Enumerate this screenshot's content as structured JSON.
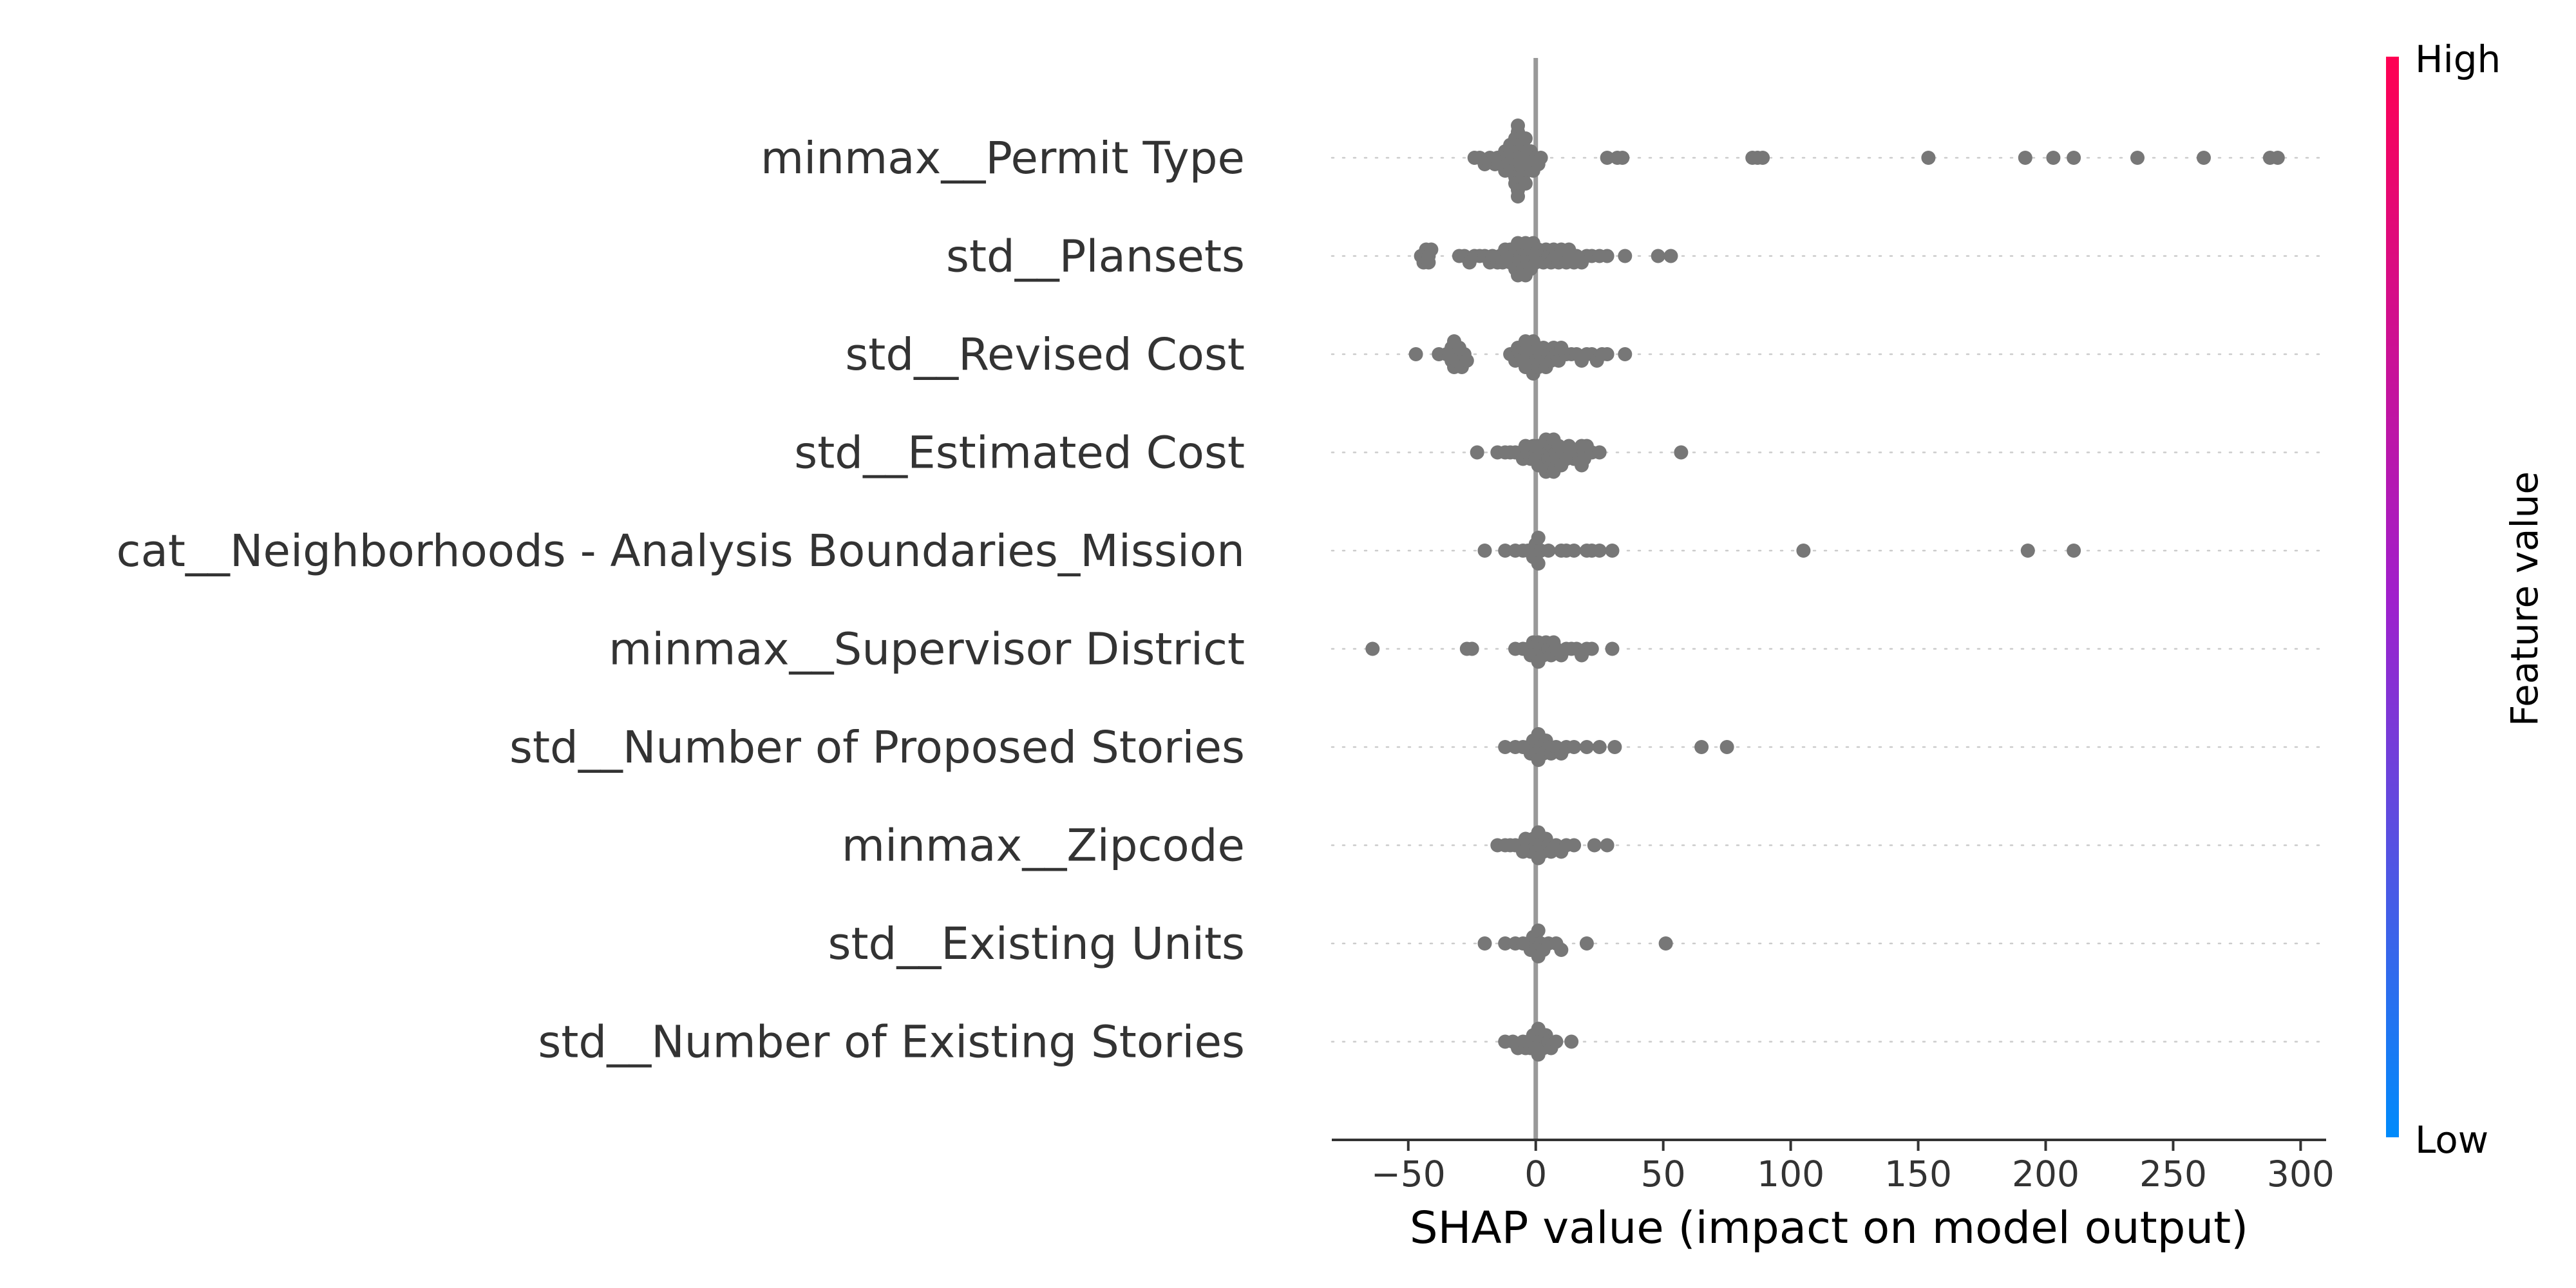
{
  "chart_data": {
    "type": "scatter",
    "subtype": "shap-beeswarm-summary",
    "title": "",
    "xlabel": "SHAP value (impact on model output)",
    "xlim": [
      -80,
      310
    ],
    "xticks": [
      -50,
      0,
      50,
      100,
      150,
      200,
      250,
      300
    ],
    "xtick_labels": [
      "−50",
      "0",
      "50",
      "100",
      "150",
      "200",
      "250",
      "300"
    ],
    "zero_line": true,
    "point_color": "#777777",
    "colorbar": {
      "label": "Feature value",
      "high_label": "High",
      "low_label": "Low",
      "high_color": "#ff0052",
      "mid_color": "#a01fcc",
      "low_color": "#008bfb"
    },
    "features": [
      {
        "name": "minmax__Permit Type",
        "values": [
          -15,
          -14,
          -13,
          -12,
          -12,
          -11,
          -11,
          -10,
          -10,
          -10,
          -9,
          -9,
          -9,
          -9,
          -8,
          -8,
          -8,
          -8,
          -7,
          -7,
          -7,
          -7,
          -6,
          -6,
          -6,
          -5,
          -5,
          -5,
          -4,
          -4,
          -3,
          -3,
          -2,
          -1,
          0,
          1,
          -16,
          -18,
          -20,
          -22,
          -24,
          2,
          28,
          32,
          34,
          85,
          87,
          89,
          154,
          192,
          203,
          211,
          236,
          262,
          288,
          291
        ]
      },
      {
        "name": "std__Plansets",
        "values": [
          -45,
          -44,
          -43,
          -42,
          -42,
          -41,
          -30,
          -28,
          -26,
          -24,
          -22,
          -20,
          -18,
          -17,
          -15,
          -14,
          -13,
          -12,
          -11,
          -10,
          -10,
          -9,
          -9,
          -8,
          -8,
          -7,
          -7,
          -6,
          -6,
          -5,
          -5,
          -4,
          -4,
          -3,
          -3,
          -2,
          -2,
          -1,
          0,
          0,
          1,
          2,
          3,
          4,
          5,
          6,
          7,
          8,
          9,
          10,
          11,
          12,
          13,
          14,
          15,
          16,
          18,
          20,
          22,
          25,
          28,
          35,
          48,
          53
        ]
      },
      {
        "name": "std__Revised Cost",
        "values": [
          -47,
          -38,
          -35,
          -34,
          -33,
          -33,
          -32,
          -32,
          -31,
          -31,
          -30,
          -29,
          -28,
          -27,
          -10,
          -9,
          -8,
          -7,
          -6,
          -5,
          -5,
          -4,
          -4,
          -3,
          -3,
          -2,
          -2,
          -1,
          -1,
          0,
          0,
          1,
          1,
          2,
          2,
          3,
          4,
          5,
          6,
          7,
          8,
          9,
          10,
          12,
          14,
          16,
          18,
          20,
          22,
          24,
          26,
          28,
          35
        ]
      },
      {
        "name": "std__Estimated Cost",
        "values": [
          -23,
          -15,
          -12,
          -10,
          -8,
          -6,
          -5,
          -4,
          -3,
          -2,
          -1,
          0,
          0,
          1,
          1,
          2,
          2,
          3,
          3,
          4,
          4,
          5,
          5,
          6,
          6,
          7,
          7,
          8,
          8,
          9,
          10,
          11,
          12,
          13,
          14,
          15,
          16,
          17,
          18,
          18,
          19,
          19,
          20,
          22,
          25,
          57
        ]
      },
      {
        "name": "cat__Neighborhoods - Analysis Boundaries_Mission",
        "values": [
          -20,
          -12,
          -8,
          -5,
          -3,
          -1,
          0,
          0,
          0,
          1,
          1,
          2,
          5,
          10,
          12,
          15,
          20,
          22,
          25,
          30,
          105,
          193,
          211
        ]
      },
      {
        "name": "minmax__Supervisor District",
        "values": [
          -64,
          -27,
          -25,
          -8,
          -5,
          -3,
          -2,
          -1,
          0,
          0,
          1,
          1,
          2,
          3,
          4,
          5,
          6,
          7,
          8,
          10,
          12,
          14,
          16,
          18,
          20,
          22,
          30
        ]
      },
      {
        "name": "std__Number of Proposed Stories",
        "values": [
          -12,
          -8,
          -5,
          -3,
          -2,
          -1,
          0,
          0,
          0,
          1,
          1,
          2,
          3,
          4,
          5,
          6,
          8,
          10,
          12,
          15,
          20,
          25,
          31,
          65,
          75
        ]
      },
      {
        "name": "minmax__Zipcode",
        "values": [
          -15,
          -12,
          -10,
          -8,
          -6,
          -5,
          -4,
          -3,
          -2,
          -1,
          0,
          0,
          0,
          1,
          1,
          2,
          3,
          4,
          5,
          6,
          8,
          10,
          12,
          15,
          23,
          28
        ]
      },
      {
        "name": "std__Existing Units",
        "values": [
          -20,
          -12,
          -8,
          -5,
          -3,
          -2,
          -1,
          0,
          0,
          0,
          1,
          1,
          2,
          3,
          5,
          8,
          10,
          20,
          51
        ]
      },
      {
        "name": "std__Number of Existing Stories",
        "values": [
          -12,
          -9,
          -7,
          -5,
          -4,
          -3,
          -2,
          -1,
          0,
          0,
          0,
          1,
          1,
          2,
          3,
          4,
          5,
          6,
          8,
          14
        ]
      }
    ]
  }
}
